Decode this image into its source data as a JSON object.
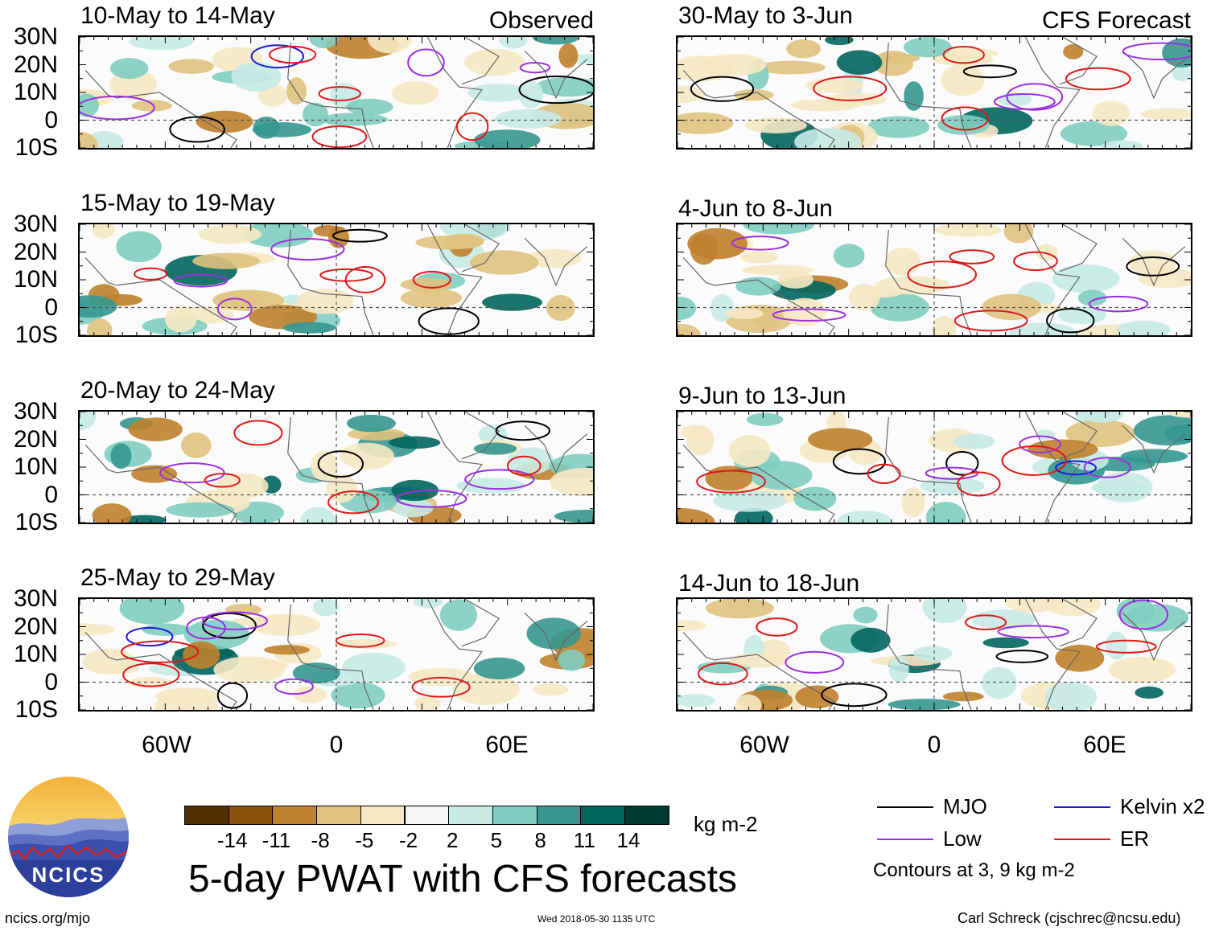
{
  "chart_data": {
    "type": "heatmap",
    "title": "5-day PWAT with CFS forecasts",
    "variable": "PWAT anomaly",
    "units": "kg m-2",
    "lat_ticks": [
      "30N",
      "20N",
      "10N",
      "0",
      "10S"
    ],
    "lat_range": [
      -10,
      30
    ],
    "lon_ticks": [
      "60W",
      "0",
      "60E"
    ],
    "lon_range": [
      -90,
      90
    ],
    "colorbar_levels": [
      -14,
      -11,
      -8,
      -5,
      -2,
      2,
      5,
      8,
      11,
      14
    ],
    "colorbar_tick_labels": [
      "-14",
      "-11",
      "-8",
      "-5",
      "-2",
      "2",
      "5",
      "8",
      "11",
      "14"
    ],
    "colorbar_colors": [
      "#543005",
      "#8c510a",
      "#bf812d",
      "#dfc27d",
      "#f6e8c3",
      "#f5f5f5",
      "#c7eae5",
      "#80cdc1",
      "#35978f",
      "#01665e",
      "#003c30"
    ],
    "contour_levels_note": "Contours at 3, 9 kg m-2",
    "observed_label": "Observed",
    "forecast_label": "CFS Forecast",
    "observed_periods": [
      "10-May to 14-May",
      "15-May to 19-May",
      "20-May to 24-May",
      "25-May to 29-May"
    ],
    "forecast_periods": [
      "30-May to 3-Jun",
      "4-Jun to 8-Jun",
      "9-Jun to 13-Jun",
      "14-Jun to 18-Jun"
    ],
    "legend": [
      {
        "name": "MJO",
        "color": "#000000"
      },
      {
        "name": "Kelvin x2",
        "color": "#1a1adc"
      },
      {
        "name": "Low",
        "color": "#9b30e0"
      },
      {
        "name": "ER",
        "color": "#e01818"
      }
    ]
  },
  "footer": {
    "url": "ncics.org/mjo",
    "timestamp": "Wed 2018-05-30 1135 UTC",
    "author": "Carl Schreck (cjschrec@ncsu.edu)",
    "logo_text": "NCICS"
  },
  "colors": {
    "brown_dark": "#8c510a",
    "brown": "#bf812d",
    "tan": "#dfc27d",
    "light_tan": "#f6e8c3",
    "light_teal": "#c7eae5",
    "teal": "#80cdc1",
    "teal_mid": "#35978f",
    "teal_dark": "#01665e"
  }
}
